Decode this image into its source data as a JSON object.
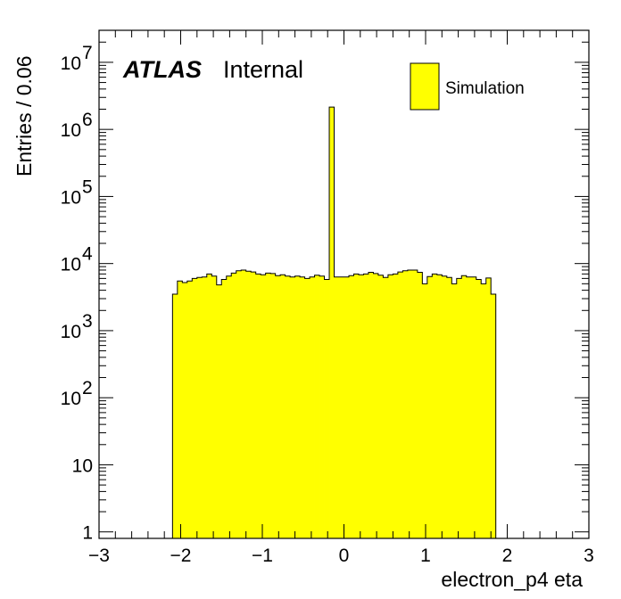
{
  "chart_data": {
    "type": "bar",
    "style": "histogram",
    "fill_color": "#ffff00",
    "line_color": "#000000",
    "xlabel": "electron_p4 eta",
    "ylabel": "Entries / 0.06",
    "xlim": [
      -3,
      3
    ],
    "ylim": [
      0.8,
      30000000
    ],
    "y_log_scale": true,
    "x_ticks": [
      "−3",
      "−2",
      "−1",
      "0",
      "1",
      "2",
      "3"
    ],
    "label_main": "ATLAS",
    "label_sub": "Internal",
    "legend": {
      "entries": [
        "Simulation"
      ],
      "placement": "top-right"
    },
    "bin_width": 0.06,
    "bin_edges_start": -2.1,
    "values": [
      3500,
      5500,
      5200,
      5500,
      6000,
      6200,
      6300,
      7000,
      6500,
      4800,
      5800,
      6500,
      7200,
      7800,
      8000,
      7700,
      7500,
      7000,
      6800,
      7200,
      7100,
      6600,
      6800,
      6500,
      6300,
      6500,
      6300,
      6000,
      6300,
      6700,
      6500,
      5800,
      2150000,
      6300,
      6300,
      6300,
      6600,
      7000,
      6800,
      7000,
      7400,
      7100,
      6700,
      6200,
      6800,
      7000,
      7500,
      7800,
      8000,
      8000,
      7400,
      5000,
      6400,
      7000,
      6800,
      6500,
      6200,
      5000,
      6000,
      6600,
      6300,
      6300,
      5800,
      5000,
      6100,
      3500
    ]
  }
}
